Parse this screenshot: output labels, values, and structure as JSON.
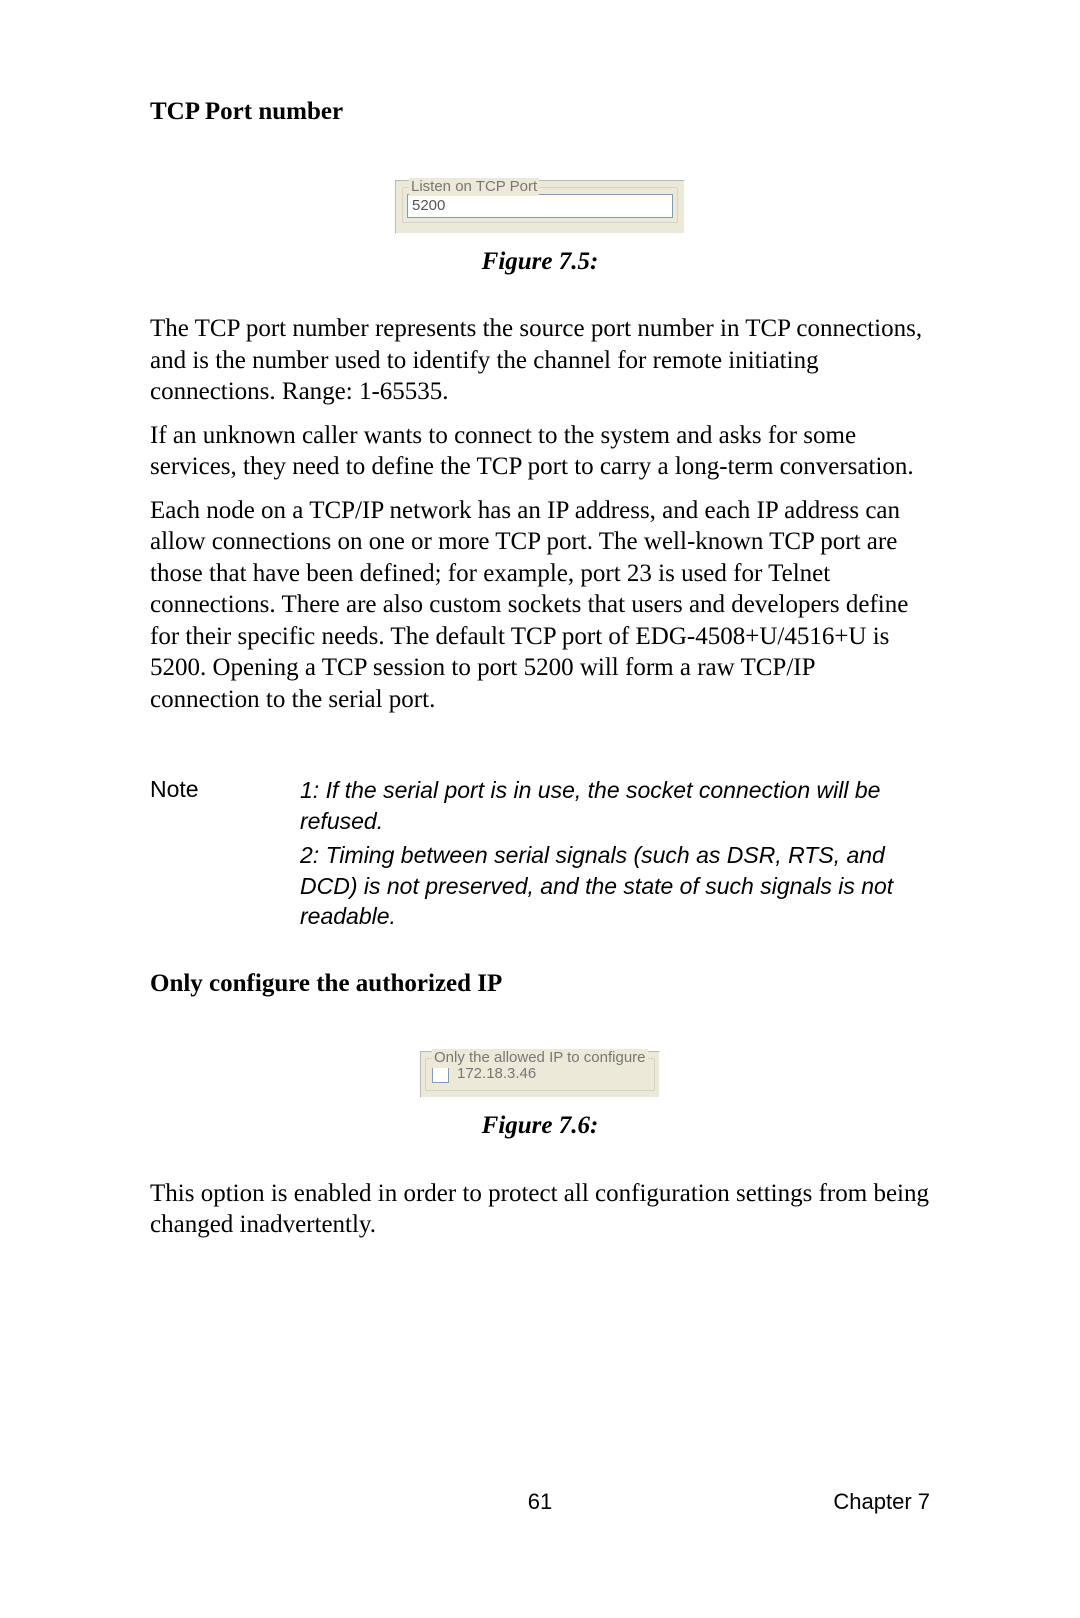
{
  "heading1": "TCP Port number",
  "figure1": {
    "legend": "Listen on TCP Port",
    "value": "5200",
    "caption": "Figure 7.5:"
  },
  "para1": "The TCP port number represents the source port number in TCP connections, and is the number used to identify the channel for remote initiating connections. Range: 1-65535.",
  "para2": "If an unknown caller wants to connect to the system and asks for some services, they need to define the TCP port to carry a long-term conversation.",
  "para3": "Each node on a TCP/IP network has an IP address, and each IP address can allow connections on one or more TCP port. The well-known TCP port are those that have been defined; for example, port 23 is used for Telnet connections. There are also custom sockets that users and developers define for their specific needs. The default TCP port of EDG-4508+U/4516+U is 5200. Opening a TCP session to port 5200 will form a raw TCP/IP connection to the serial port.",
  "note": {
    "label": "Note",
    "item1": "1: If the serial port is in use, the socket connection will be refused.",
    "item2": "2: Timing between serial signals (such as DSR, RTS, and DCD) is not preserved, and the state of such signals is not readable."
  },
  "heading2": "Only configure the authorized IP",
  "figure2": {
    "legend": "Only the allowed IP to configure",
    "ip": "172.18.3.46",
    "caption": "Figure 7.6:"
  },
  "para4": "This option is enabled in order to protect all configuration settings from being changed inadvertently.",
  "footer": {
    "page": "61",
    "chapter": "Chapter 7"
  }
}
